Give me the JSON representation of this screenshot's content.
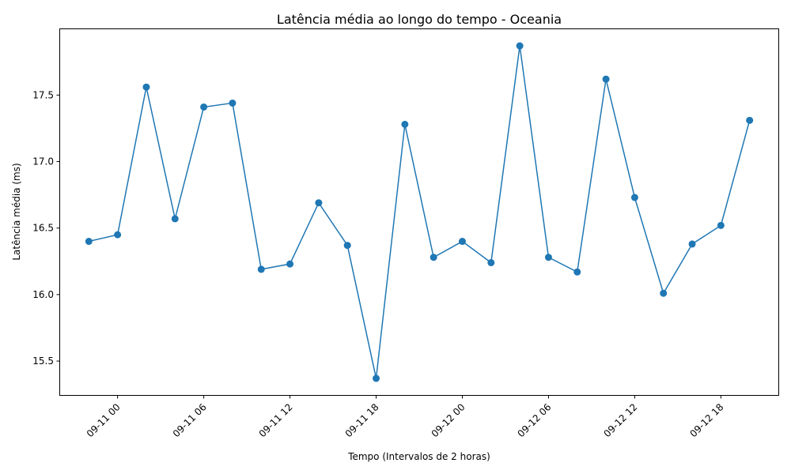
{
  "chart_data": {
    "type": "line",
    "title": "Latência média ao longo do tempo - Oceania",
    "xlabel": "Tempo (Intervalos de 2 horas)",
    "ylabel": "Latência média (ms)",
    "x": [
      "2023-09-10 22:00",
      "2023-09-11 00:00",
      "2023-09-11 02:00",
      "2023-09-11 04:00",
      "2023-09-11 06:00",
      "2023-09-11 08:00",
      "2023-09-11 10:00",
      "2023-09-11 12:00",
      "2023-09-11 14:00",
      "2023-09-11 16:00",
      "2023-09-11 18:00",
      "2023-09-11 20:00",
      "2023-09-11 22:00",
      "2023-09-12 00:00",
      "2023-09-12 02:00",
      "2023-09-12 04:00",
      "2023-09-12 06:00",
      "2023-09-12 08:00",
      "2023-09-12 10:00",
      "2023-09-12 12:00",
      "2023-09-12 14:00",
      "2023-09-12 16:00",
      "2023-09-12 18:00",
      "2023-09-12 20:00"
    ],
    "series": [
      {
        "name": "",
        "color": "#1f77b4",
        "values": [
          16.4,
          16.45,
          17.56,
          16.57,
          17.41,
          17.44,
          16.19,
          16.23,
          16.69,
          16.37,
          15.37,
          17.28,
          16.28,
          16.4,
          16.24,
          17.87,
          16.28,
          16.17,
          17.62,
          16.73,
          16.01,
          16.38,
          16.52,
          17.31
        ]
      }
    ],
    "xticks": [
      {
        "label": "09-11 00",
        "x": "2023-09-11 00:00"
      },
      {
        "label": "09-11 06",
        "x": "2023-09-11 06:00"
      },
      {
        "label": "09-11 12",
        "x": "2023-09-11 12:00"
      },
      {
        "label": "09-11 18",
        "x": "2023-09-11 18:00"
      },
      {
        "label": "09-12 00",
        "x": "2023-09-12 00:00"
      },
      {
        "label": "09-12 06",
        "x": "2023-09-12 06:00"
      },
      {
        "label": "09-12 12",
        "x": "2023-09-12 12:00"
      },
      {
        "label": "09-12 18",
        "x": "2023-09-12 18:00"
      }
    ],
    "yticks": [
      {
        "label": "15.5",
        "value": 15.5
      },
      {
        "label": "16.0",
        "value": 16.0
      },
      {
        "label": "16.5",
        "value": 16.5
      },
      {
        "label": "17.0",
        "value": 17.0
      },
      {
        "label": "17.5",
        "value": 17.5
      }
    ],
    "xlim": [
      "2023-09-10 20:00",
      "2023-09-12 22:00"
    ],
    "ylim": [
      15.245,
      17.995
    ],
    "grid": false,
    "legend": "none"
  }
}
